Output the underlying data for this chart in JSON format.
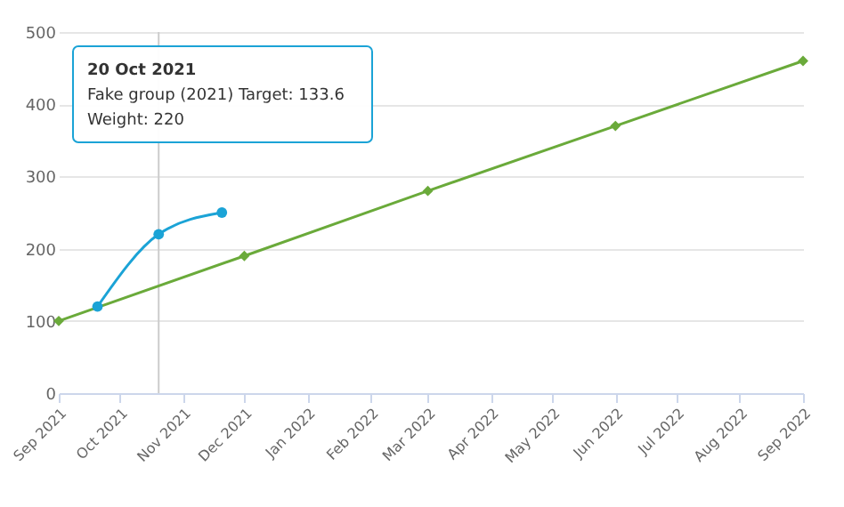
{
  "chart_data": {
    "type": "line",
    "series": [
      {
        "color": "#6aaa3a",
        "marker": "diamond",
        "x": [
          "2021-09-01",
          "2021-12-01",
          "2022-03-01",
          "2022-06-01",
          "2022-09-01"
        ],
        "values": [
          100,
          190,
          280,
          370,
          460
        ]
      },
      {
        "color": "#1ba3d6",
        "marker": "circle",
        "x": [
          "2021-09-20",
          "2021-10-20",
          "2021-11-20"
        ],
        "values": [
          120,
          220,
          250
        ]
      }
    ],
    "xlim": [
      "2021-09-01",
      "2022-09-01"
    ],
    "xticks": [
      {
        "value": "2021-09-01",
        "label": "Sep 2021"
      },
      {
        "value": "2021-10-01",
        "label": "Oct 2021"
      },
      {
        "value": "2021-11-01",
        "label": "Nov 2021"
      },
      {
        "value": "2021-12-01",
        "label": "Dec 2021"
      },
      {
        "value": "2022-01-01",
        "label": "Jan 2022"
      },
      {
        "value": "2022-02-01",
        "label": "Feb 2022"
      },
      {
        "value": "2022-03-01",
        "label": "Mar 2022"
      },
      {
        "value": "2022-04-01",
        "label": "Apr 2022"
      },
      {
        "value": "2022-05-01",
        "label": "May 2022"
      },
      {
        "value": "2022-06-01",
        "label": "Jun 2022"
      },
      {
        "value": "2022-07-01",
        "label": "Jul 2022"
      },
      {
        "value": "2022-08-01",
        "label": "Aug 2022"
      },
      {
        "value": "2022-09-01",
        "label": "Sep 2022"
      }
    ],
    "ylim": [
      0,
      500
    ],
    "yticks": [
      0,
      100,
      200,
      300,
      400,
      500
    ],
    "grid": "y",
    "ref_lines": [
      {
        "axis": "x",
        "value": "2021-10-20",
        "color": "#cccccc"
      }
    ],
    "annotations": [
      "20 Oct 2021",
      "Fake group (2021) Target: 133.6",
      "Weight: 220"
    ]
  }
}
